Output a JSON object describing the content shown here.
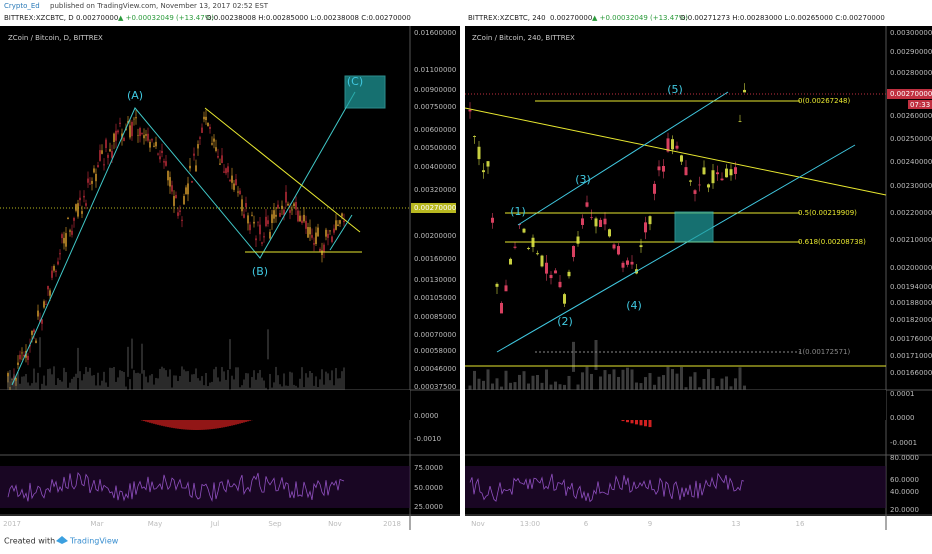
{
  "header": {
    "author": "Crypto_Ed",
    "published": "published on TradingView.com, November 13, 2017 02:52 EST"
  },
  "panels": [
    {
      "symbol": "BITTREX:XZCBTC, D",
      "last": "0.00270000",
      "change": "▲ +0.00032049 (+13.47%)",
      "ohlc": "O:0.00238008 H:0.00285000 L:0.00238008 C:0.00270000",
      "title": "ZCoin / Bitcoin, D, BITTREX",
      "price_labels": [
        "0.01600000",
        "0.01100000",
        "0.00900000",
        "0.00750000",
        "0.00600000",
        "0.00500000",
        "0.00400000",
        "0.00320000",
        "0.00270000",
        "0.00200000",
        "0.00160000",
        "0.00130000",
        "0.00105000",
        "0.00085000",
        "0.00070000",
        "0.00058000",
        "0.00046000",
        "0.00037500"
      ],
      "macd_labels": [
        "0.0000",
        "-0.0010"
      ],
      "rsi_labels": [
        "75.0000",
        "50.0000",
        "25.0000"
      ],
      "time_labels": [
        "2017",
        "Mar",
        "May",
        "Jul",
        "Sep",
        "Nov",
        "2018"
      ],
      "annotations": [
        "(A)",
        "(B)",
        "(C)"
      ]
    },
    {
      "symbol": "BITTREX:XZCBTC, 240",
      "last": "0.00270000",
      "change": "▲ +0.00032049 (+13.47%)",
      "ohlc": "O:0.00271273 H:0.00283000 L:0.00265000 C:0.00270000",
      "title": "ZCoin / Bitcoin, 240, BITTREX",
      "price_labels": [
        "0.00300000",
        "0.00290000",
        "0.00280000",
        "0.00270000",
        "0.00260000",
        "0.00250000",
        "0.00240000",
        "0.00230000",
        "0.00220000",
        "0.00210000",
        "0.00200000",
        "0.00194000",
        "0.00188000",
        "0.00182000",
        "0.00176000",
        "0.00171000",
        "0.00166000"
      ],
      "countdown": "07:33",
      "macd_labels": [
        "0.0001",
        "0.0000",
        "-0.0001"
      ],
      "rsi_labels": [
        "80.0000",
        "60.0000",
        "40.0000",
        "20.0000"
      ],
      "time_labels": [
        "Nov",
        "13:00",
        "6",
        "9",
        "13",
        "16"
      ],
      "annotations": [
        "(1)",
        "(2)",
        "(3)",
        "(4)",
        "(5)"
      ],
      "fib_labels": [
        "0(0.00267248)",
        "0.5(0.00219909)",
        "0.618(0.00208738)",
        "1(0.00172571)"
      ]
    }
  ],
  "footer": {
    "created": "Created with",
    "brand": "TradingView"
  }
}
